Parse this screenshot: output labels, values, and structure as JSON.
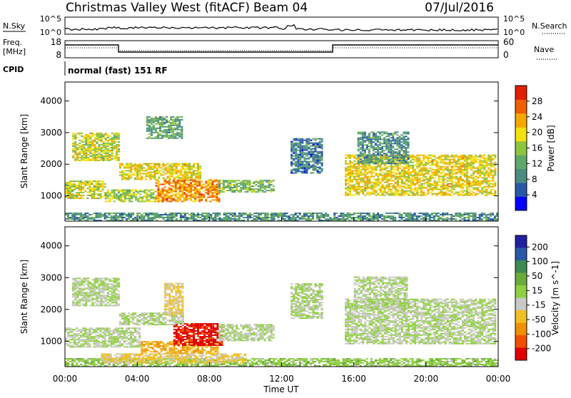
{
  "header": {
    "title": "Christmas Valley West (fitACF)",
    "beam": "Beam 04",
    "date": "07/Jul/2016"
  },
  "panels": {
    "nsky_label": "N.Sky",
    "nsearch_label": "N.Search",
    "nsky_ticks": [
      "10^5",
      "10^0"
    ],
    "nsky_right_ticks": [
      "10^5",
      "10^0"
    ],
    "freq_label": "Freq.",
    "freq_unit": "[MHz]",
    "freq_ticks": [
      "18",
      "8"
    ],
    "nave_label": "Nave",
    "nave_ticks": [
      "60",
      "0"
    ],
    "cpid_label": "CPID",
    "cpid_text": "normal (fast) 151 RF"
  },
  "colors": {
    "power_scale": [
      "#0000ff",
      "#2a58a8",
      "#4a8d80",
      "#5fa86a",
      "#8dc43e",
      "#f5e010",
      "#f5a800",
      "#f06000",
      "#e02000"
    ],
    "velocity_scale": [
      "#2020a0",
      "#2a58a8",
      "#3e8a52",
      "#6aac3c",
      "#90d040",
      "#c8c8c4",
      "#f0c020",
      "#f09000",
      "#f05000",
      "#e00000"
    ]
  },
  "chart_data": [
    {
      "type": "heatmap",
      "name": "power",
      "ylabel": "Slant Range [km]",
      "yticks": [
        "1000",
        "2000",
        "3000",
        "4000"
      ],
      "ylim": [
        200,
        4600
      ],
      "xticks": [
        "00:00",
        "04:00",
        "08:00",
        "12:00",
        "16:00",
        "20:00",
        "00:00"
      ],
      "xlim_hours": [
        0,
        24
      ],
      "colorbar_label": "Power [dB]",
      "colorbar_ticks": [
        "4",
        "8",
        "12",
        "16",
        "20",
        "24",
        "28"
      ],
      "clim": [
        0,
        32
      ],
      "regions": [
        {
          "t0": 0.0,
          "t1": 2.2,
          "r0": 900,
          "r1": 1450,
          "level": 18
        },
        {
          "t0": 2.2,
          "t1": 5.0,
          "r0": 800,
          "r1": 1200,
          "level": 16
        },
        {
          "t0": 5.0,
          "t1": 8.5,
          "r0": 800,
          "r1": 1500,
          "level": 24
        },
        {
          "t0": 8.5,
          "t1": 11.5,
          "r0": 1100,
          "r1": 1500,
          "level": 14
        },
        {
          "t0": 0.4,
          "t1": 3.0,
          "r0": 2100,
          "r1": 3000,
          "level": 18
        },
        {
          "t0": 3.0,
          "t1": 7.5,
          "r0": 1500,
          "r1": 2000,
          "level": 20
        },
        {
          "t0": 4.5,
          "t1": 6.5,
          "r0": 2800,
          "r1": 3500,
          "level": 12
        },
        {
          "t0": 12.5,
          "t1": 14.2,
          "r0": 1700,
          "r1": 2800,
          "level": 8
        },
        {
          "t0": 15.5,
          "t1": 23.8,
          "r0": 1000,
          "r1": 2300,
          "level": 20
        },
        {
          "t0": 16.2,
          "t1": 19.0,
          "r0": 2000,
          "r1": 3000,
          "level": 10
        },
        {
          "t0": 0.0,
          "t1": 24.0,
          "r0": 200,
          "r1": 450,
          "level": 10
        }
      ]
    },
    {
      "type": "heatmap",
      "name": "velocity",
      "ylabel": "Slant Range [km]",
      "yticks": [
        "1000",
        "2000",
        "3000",
        "4000"
      ],
      "ylim": [
        200,
        4600
      ],
      "xticks": [
        "00:00",
        "04:00",
        "08:00",
        "12:00",
        "16:00",
        "20:00",
        "00:00"
      ],
      "xlabel": "Time UT",
      "xlim_hours": [
        0,
        24
      ],
      "colorbar_label": "Velocity [m s^-1]",
      "colorbar_ticks": [
        "200",
        "100",
        "50",
        "15",
        "-15",
        "-50",
        "-100",
        "-200"
      ],
      "clim": [
        -250,
        250
      ],
      "regions": [
        {
          "t0": 0.0,
          "t1": 4.2,
          "r0": 800,
          "r1": 1400,
          "level": 0
        },
        {
          "t0": 4.2,
          "t1": 8.5,
          "r0": 600,
          "r1": 1000,
          "level": -100
        },
        {
          "t0": 6.0,
          "t1": 8.7,
          "r0": 850,
          "r1": 1550,
          "level": -220
        },
        {
          "t0": 8.5,
          "t1": 11.5,
          "r0": 1000,
          "r1": 1500,
          "level": 0
        },
        {
          "t0": 0.4,
          "t1": 3.0,
          "r0": 2100,
          "r1": 3000,
          "level": 0
        },
        {
          "t0": 3.0,
          "t1": 6.5,
          "r0": 1500,
          "r1": 1900,
          "level": 0
        },
        {
          "t0": 5.5,
          "t1": 6.5,
          "r0": 1800,
          "r1": 2800,
          "level": -60
        },
        {
          "t0": 12.5,
          "t1": 14.2,
          "r0": 1700,
          "r1": 2800,
          "level": 0
        },
        {
          "t0": 15.5,
          "t1": 23.8,
          "r0": 900,
          "r1": 2300,
          "level": 0
        },
        {
          "t0": 16.0,
          "t1": 19.0,
          "r0": 2000,
          "r1": 3000,
          "level": 0
        },
        {
          "t0": 0.0,
          "t1": 24.0,
          "r0": 200,
          "r1": 450,
          "level": 30
        },
        {
          "t0": 2.0,
          "t1": 10.0,
          "r0": 300,
          "r1": 600,
          "level": -60
        }
      ]
    }
  ]
}
